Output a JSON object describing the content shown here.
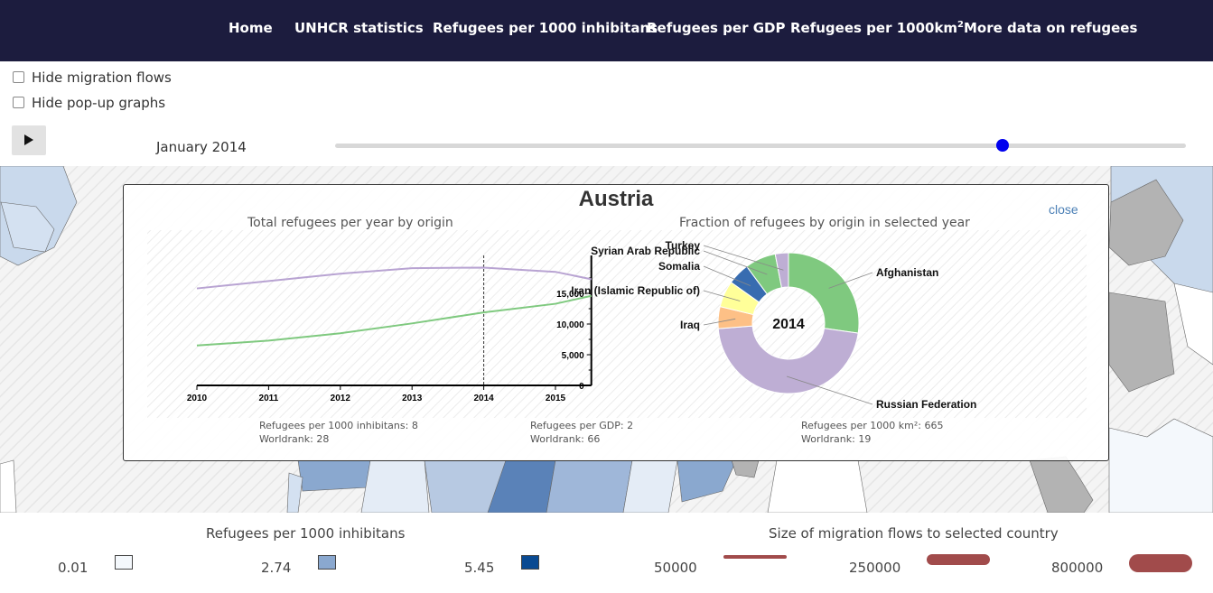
{
  "nav": {
    "home": "Home",
    "unhcr": "UNHCR statistics",
    "per1000": "Refugees per 1000 inhibitans",
    "pergdp": "Refugees per GDP",
    "perkm_base": "Refugees per 1000km",
    "perkm_sup": "2",
    "more": "More data on refugees"
  },
  "controls": {
    "hide_flows": "Hide migration flows",
    "hide_popups": "Hide pop-up graphs",
    "date": "January 2014",
    "slider_fraction": 0.785
  },
  "popup": {
    "country": "Austria",
    "close": "close",
    "line_title": "Total refugees per year by origin",
    "pie_title": "Fraction of refugees by origin in selected year",
    "stats": [
      {
        "line1": "Refugees per 1000 inhibitans: 8",
        "line2": "Worldrank: 28"
      },
      {
        "line1": "Refugees per GDP: 2",
        "line2": "Worldrank: 66"
      },
      {
        "line1": "Refugees per 1000 km²: 665",
        "line2": "Worldrank: 19"
      }
    ]
  },
  "chart_data": [
    {
      "type": "line",
      "title": "Total refugees per year by origin",
      "x": [
        2010,
        2011,
        2012,
        2013,
        2014,
        2015,
        2015.5
      ],
      "xticks": [
        "2010",
        "2011",
        "2012",
        "2013",
        "2014",
        "2015"
      ],
      "yticks": [
        "0",
        "5,000",
        "10,000",
        "15,000"
      ],
      "ylim": [
        0,
        20000
      ],
      "selected_x": 2014,
      "series": [
        {
          "color": "#b8a3d2",
          "values": [
            15800,
            17000,
            18200,
            19100,
            19200,
            18500,
            17300
          ]
        },
        {
          "color": "#7fc97f",
          "values": [
            6500,
            7300,
            8500,
            10100,
            11900,
            13300,
            14600
          ]
        }
      ]
    },
    {
      "type": "pie",
      "title": "Fraction of refugees by origin in selected year",
      "center_label": "2014",
      "slices": [
        {
          "label": "Afghanistan",
          "value": 27,
          "color": "#7fc97f"
        },
        {
          "label": "Russian Federation",
          "value": 46,
          "color": "#beaed4"
        },
        {
          "label": "Iraq",
          "value": 5,
          "color": "#fdc086"
        },
        {
          "label": "Iran (Islamic Republic of)",
          "value": 6,
          "color": "#ffff99"
        },
        {
          "label": "Somalia",
          "value": 5,
          "color": "#386cb0"
        },
        {
          "label": "Syrian Arab Republic",
          "value": 7,
          "color": "#7fc97f"
        },
        {
          "label": "Turkey",
          "value": 3,
          "color": "#beaed4"
        }
      ]
    }
  ],
  "legend": {
    "choropleth_title": "Refugees per 1000 inhibitans",
    "choropleth": [
      {
        "label": "0.01",
        "color": "#f4f8fc"
      },
      {
        "label": "2.74",
        "color": "#8aa8cf"
      },
      {
        "label": "5.45",
        "color": "#0a4a92"
      }
    ],
    "flows_title": "Size of migration flows to selected country",
    "flows": [
      {
        "label": "50000",
        "size": 50000
      },
      {
        "label": "250000",
        "size": 250000
      },
      {
        "label": "800000",
        "size": 800000
      }
    ],
    "flow_color": "#a14b4b"
  }
}
